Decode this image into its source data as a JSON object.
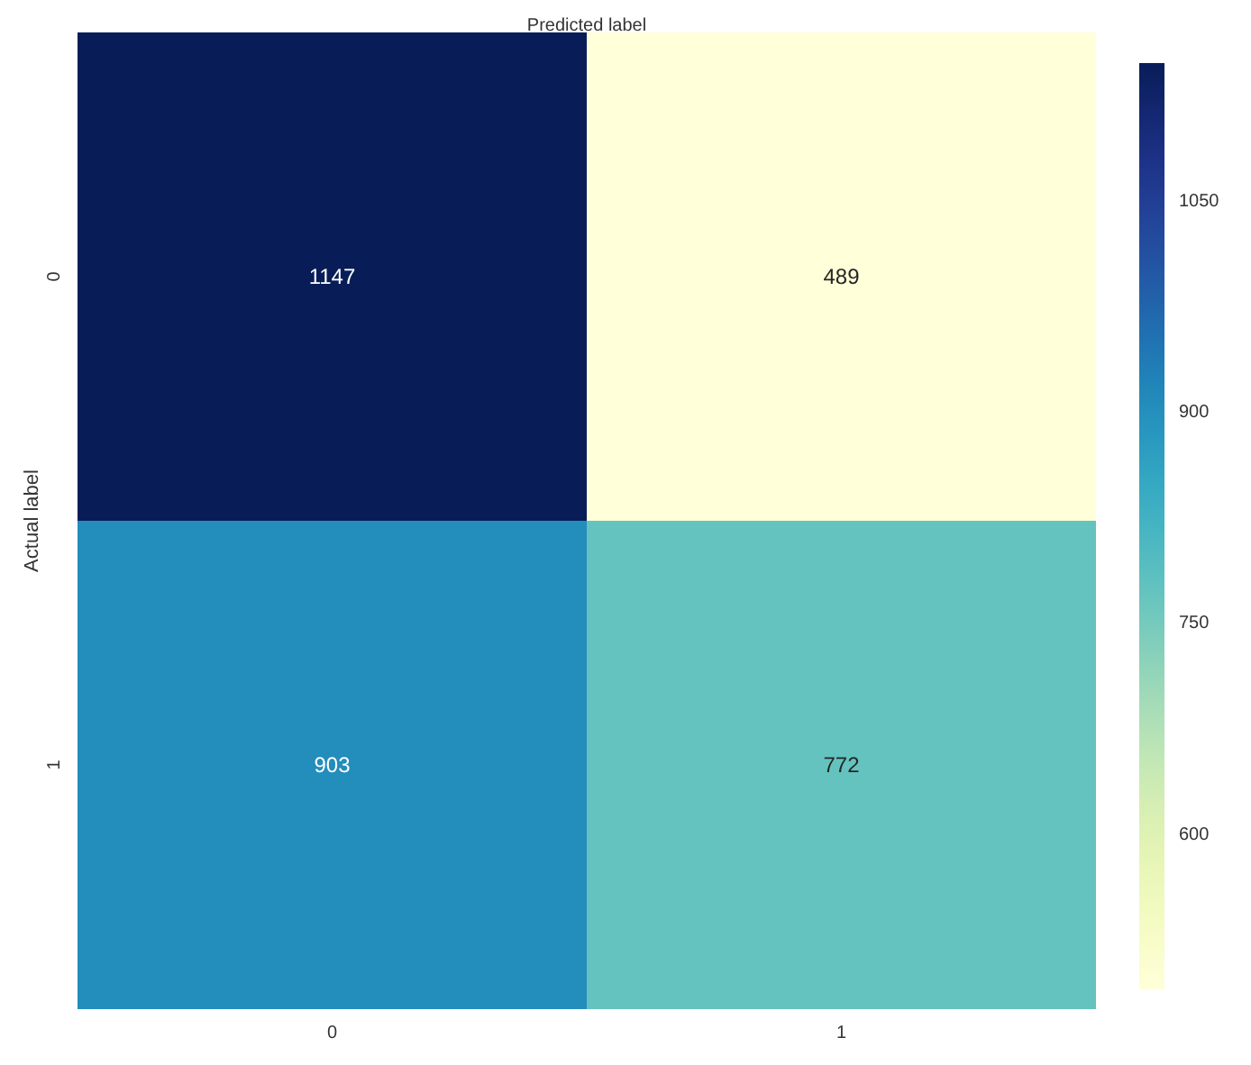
{
  "chart_data": {
    "type": "heatmap",
    "xlabel": "Predicted label",
    "ylabel": "Actual label",
    "categories": [
      "0",
      "1"
    ],
    "y_categories": [
      "0",
      "1"
    ],
    "cells": [
      [
        1147,
        489
      ],
      [
        903,
        772
      ]
    ],
    "data_labels": true,
    "clim": [
      489,
      1147
    ],
    "cticks": [
      600,
      750,
      900,
      1050
    ]
  }
}
